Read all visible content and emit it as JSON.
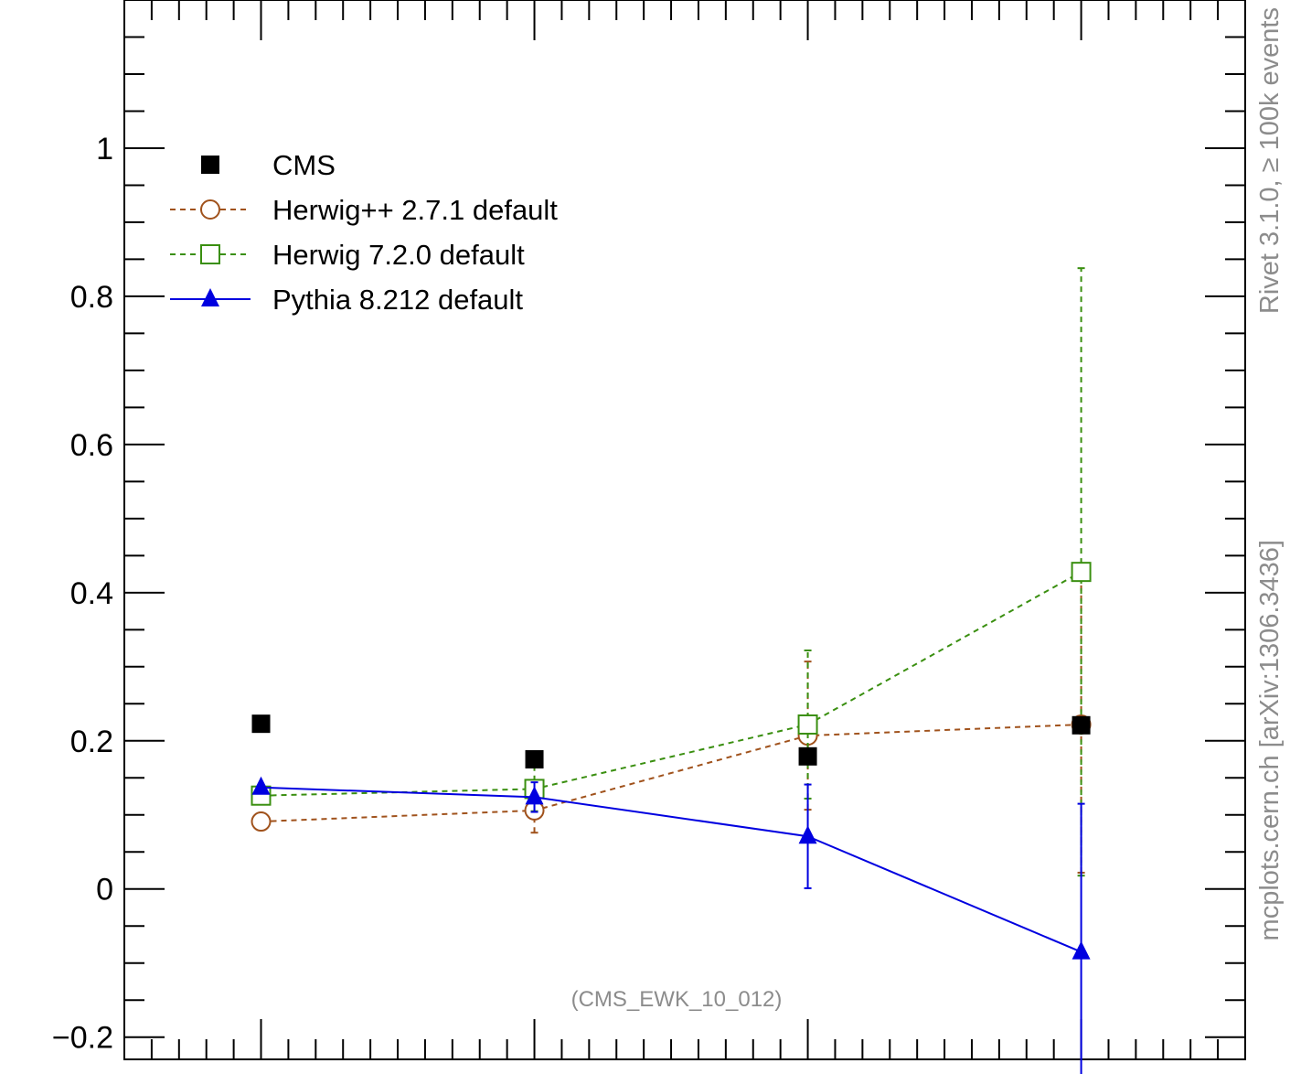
{
  "chart_data": {
    "type": "scatter",
    "annotation": "(CMS_EWK_10_012)",
    "side_labels": {
      "rivet": "Rivet 3.1.0, ≥ 100k events",
      "mcplots": "mcplots.cern.ch [arXiv:1306.3436]"
    },
    "ylim": [
      -0.23,
      1.2
    ],
    "xlim": [
      0.5,
      4.6
    ],
    "y_ticks": [
      -0.2,
      0,
      0.2,
      0.4,
      0.6,
      0.8,
      1
    ],
    "y_tick_labels": [
      "−0.2",
      "0",
      "0.2",
      "0.4",
      "0.6",
      "0.8",
      "1"
    ],
    "x": [
      1,
      2,
      3,
      4
    ],
    "legend_position": "top-left",
    "series": [
      {
        "name": "CMS",
        "color": "#000000",
        "marker": "filled-square",
        "line": "none",
        "values": [
          0.223,
          0.175,
          0.179,
          0.221
        ],
        "err_low": [
          0,
          0,
          0,
          0
        ],
        "err_high": [
          0,
          0,
          0,
          0
        ]
      },
      {
        "name": "Herwig++ 2.7.1 default",
        "color": "#a0521c",
        "marker": "open-circle",
        "line": "dashed",
        "values": [
          0.091,
          0.106,
          0.207,
          0.222
        ],
        "err_low": [
          0,
          0.03,
          0.1,
          0.2
        ],
        "err_high": [
          0,
          0.03,
          0.1,
          0.2
        ]
      },
      {
        "name": "Herwig 7.2.0 default",
        "color": "#3a8f10",
        "marker": "open-square",
        "line": "dashed",
        "values": [
          0.126,
          0.135,
          0.222,
          0.428
        ],
        "err_low": [
          0,
          0.03,
          0.1,
          0.41
        ],
        "err_high": [
          0,
          0.03,
          0.1,
          0.41
        ]
      },
      {
        "name": "Pythia 8.212 default",
        "color": "#0000e0",
        "marker": "filled-triangle",
        "line": "solid",
        "values": [
          0.137,
          0.124,
          0.071,
          -0.085
        ],
        "err_low": [
          0,
          0.02,
          0.07,
          0.2
        ],
        "err_high": [
          0,
          0.02,
          0.07,
          0.2
        ]
      }
    ]
  }
}
